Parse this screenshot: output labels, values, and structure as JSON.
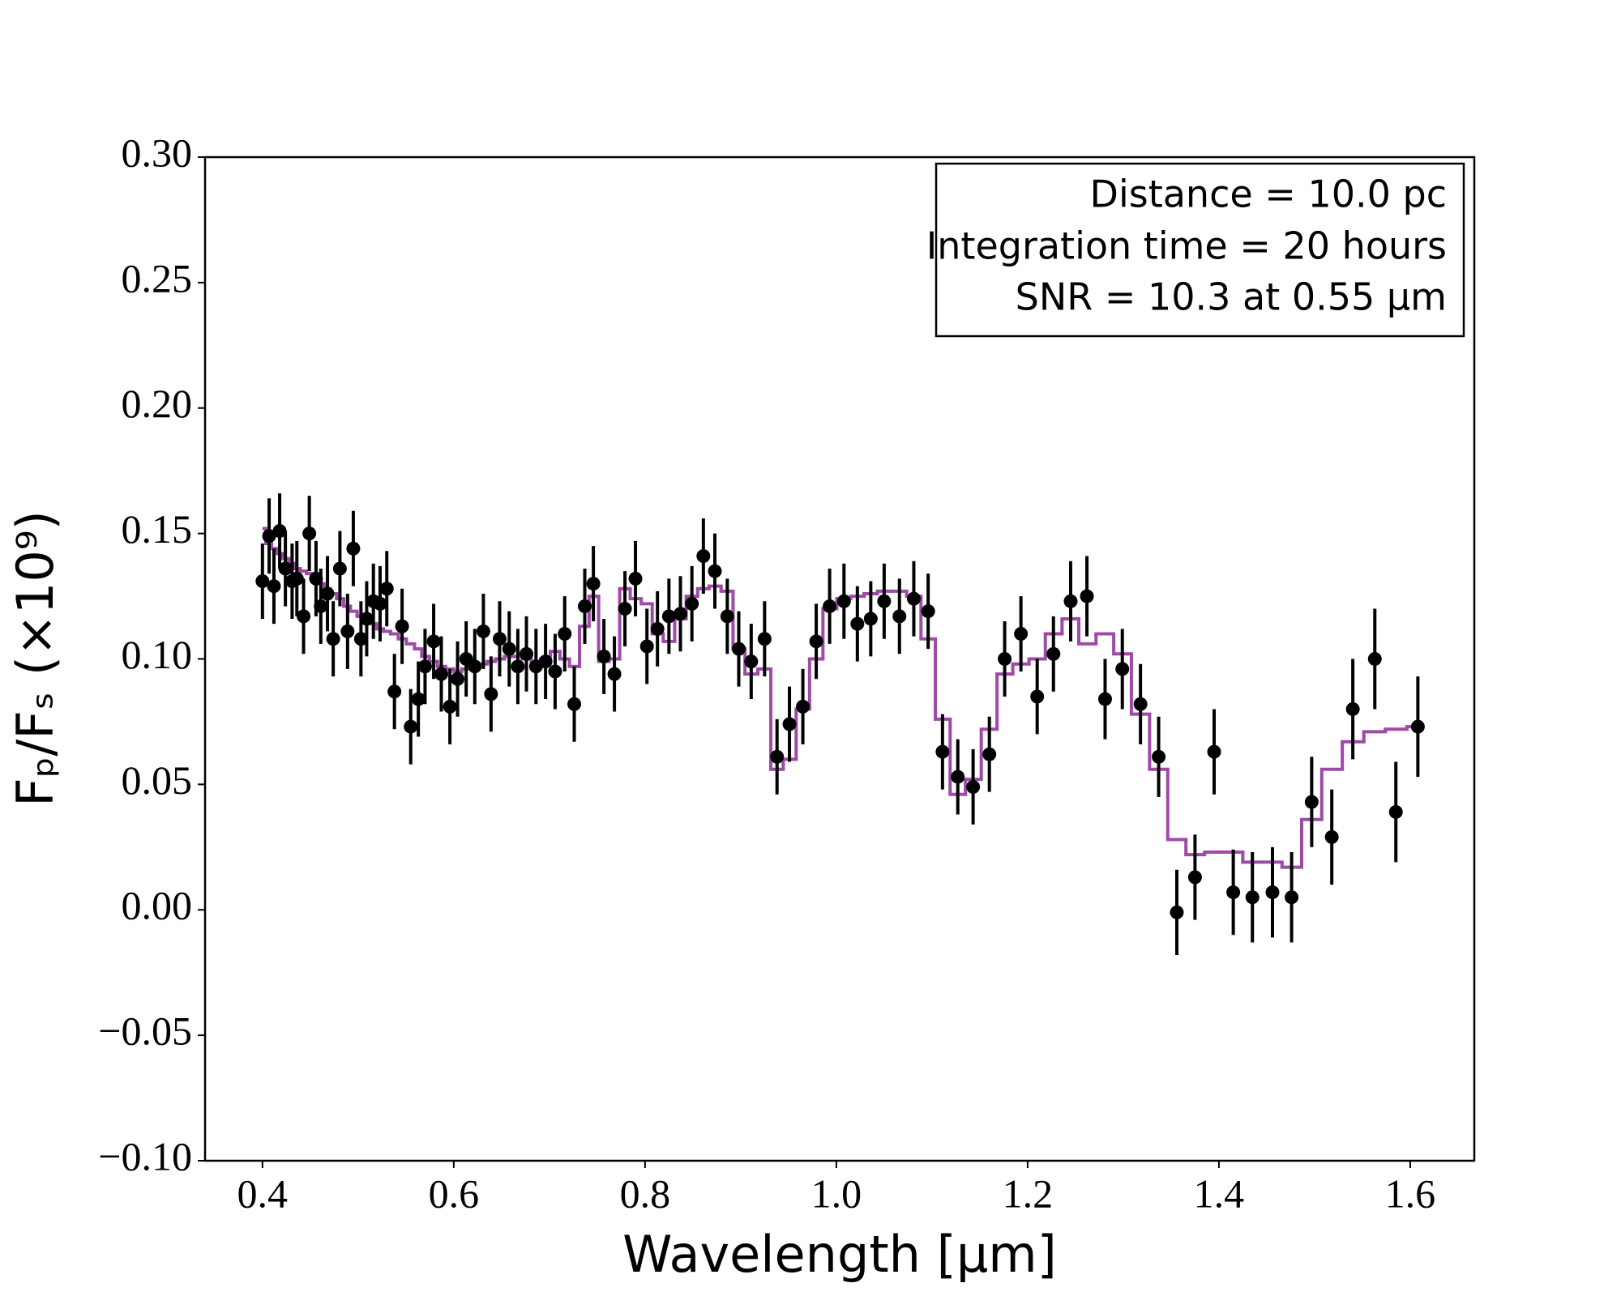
{
  "chart_data": {
    "type": "errorbar",
    "xlabel": "Wavelength [μm]",
    "ylabel": "Fₚ/Fₛ (×10⁹)",
    "annotations": [
      "Distance = 10.0 pc",
      "Integration time = 20 hours",
      "SNR = 10.3 at 0.55 μm"
    ],
    "xlim": [
      0.34,
      1.667
    ],
    "ylim": [
      -0.1,
      0.3
    ],
    "xticks": [
      0.4,
      0.6,
      0.8,
      {
        "value": 1,
        "label": "1.0"
      },
      1.2,
      1.4,
      1.6
    ],
    "yticks": [
      {
        "value": -0.1,
        "label": "−0.10"
      },
      {
        "value": -0.05,
        "label": "−0.05"
      },
      {
        "value": 0,
        "label": "0.00"
      },
      {
        "value": 0.05,
        "label": "0.05"
      },
      {
        "value": 0.1,
        "label": "0.10"
      },
      {
        "value": 0.15,
        "label": "0.15"
      },
      {
        "value": 0.2,
        "label": "0.20"
      },
      {
        "value": 0.25,
        "label": "0.25"
      },
      {
        "value": 0.3,
        "label": "0.30"
      }
    ],
    "color": "#000000",
    "model_color": "#a04aa8",
    "x": [
      0.4,
      0.407,
      0.412,
      0.418,
      0.424,
      0.431,
      0.436,
      0.443,
      0.449,
      0.456,
      0.461,
      0.468,
      0.474,
      0.481,
      0.489,
      0.495,
      0.503,
      0.509,
      0.516,
      0.523,
      0.53,
      0.538,
      0.546,
      0.555,
      0.563,
      0.57,
      0.579,
      0.587,
      0.596,
      0.604,
      0.613,
      0.622,
      0.631,
      0.639,
      0.648,
      0.658,
      0.667,
      0.676,
      0.686,
      0.696,
      0.706,
      0.716,
      0.726,
      0.737,
      0.746,
      0.757,
      0.768,
      0.779,
      0.79,
      0.802,
      0.813,
      0.825,
      0.837,
      0.849,
      0.861,
      0.873,
      0.886,
      0.898,
      0.911,
      0.925,
      0.938,
      0.951,
      0.965,
      0.979,
      0.993,
      1.008,
      1.022,
      1.036,
      1.05,
      1.066,
      1.081,
      1.096,
      1.111,
      1.127,
      1.143,
      1.16,
      1.176,
      1.193,
      1.21,
      1.227,
      1.245,
      1.262,
      1.281,
      1.299,
      1.318,
      1.337,
      1.356,
      1.375,
      1.395,
      1.415,
      1.435,
      1.456,
      1.476,
      1.497,
      1.518,
      1.54,
      1.563,
      1.585,
      1.608
    ],
    "values": [
      0.131,
      0.149,
      0.129,
      0.151,
      0.136,
      0.131,
      0.132,
      0.117,
      0.15,
      0.132,
      0.121,
      0.126,
      0.108,
      0.136,
      0.111,
      0.144,
      0.108,
      0.116,
      0.123,
      0.122,
      0.128,
      0.087,
      0.113,
      0.073,
      0.084,
      0.097,
      0.107,
      0.094,
      0.081,
      0.092,
      0.1,
      0.097,
      0.111,
      0.086,
      0.108,
      0.104,
      0.097,
      0.102,
      0.097,
      0.099,
      0.095,
      0.11,
      0.082,
      0.121,
      0.13,
      0.101,
      0.094,
      0.12,
      0.132,
      0.105,
      0.112,
      0.117,
      0.118,
      0.122,
      0.141,
      0.135,
      0.117,
      0.104,
      0.099,
      0.108,
      0.061,
      0.074,
      0.081,
      0.107,
      0.121,
      0.123,
      0.114,
      0.116,
      0.123,
      0.117,
      0.124,
      0.119,
      0.063,
      0.053,
      0.049,
      0.062,
      0.1,
      0.11,
      0.085,
      0.102,
      0.123,
      0.125,
      0.084,
      0.096,
      0.082,
      0.061,
      -0.001,
      0.013,
      0.063,
      0.007,
      0.005,
      0.007,
      0.005,
      0.043,
      0.029,
      0.08,
      0.1,
      0.039,
      0.073
    ],
    "errors": [
      0.015,
      0.015,
      0.015,
      0.015,
      0.015,
      0.015,
      0.015,
      0.015,
      0.015,
      0.015,
      0.015,
      0.015,
      0.015,
      0.015,
      0.015,
      0.015,
      0.015,
      0.015,
      0.015,
      0.015,
      0.015,
      0.015,
      0.015,
      0.015,
      0.015,
      0.015,
      0.015,
      0.015,
      0.015,
      0.015,
      0.015,
      0.015,
      0.015,
      0.015,
      0.015,
      0.015,
      0.015,
      0.015,
      0.015,
      0.015,
      0.015,
      0.015,
      0.015,
      0.015,
      0.015,
      0.015,
      0.015,
      0.015,
      0.015,
      0.015,
      0.015,
      0.015,
      0.015,
      0.015,
      0.015,
      0.015,
      0.015,
      0.015,
      0.015,
      0.015,
      0.015,
      0.015,
      0.015,
      0.015,
      0.015,
      0.015,
      0.015,
      0.015,
      0.015,
      0.015,
      0.015,
      0.015,
      0.015,
      0.015,
      0.015,
      0.015,
      0.015,
      0.015,
      0.015,
      0.015,
      0.016,
      0.016,
      0.016,
      0.016,
      0.016,
      0.016,
      0.017,
      0.017,
      0.017,
      0.017,
      0.018,
      0.018,
      0.018,
      0.018,
      0.019,
      0.02,
      0.02,
      0.02,
      0.02
    ],
    "model_values": [
      0.152,
      0.146,
      0.144,
      0.142,
      0.14,
      0.138,
      0.136,
      0.135,
      0.134,
      0.132,
      0.13,
      0.128,
      0.126,
      0.124,
      0.121,
      0.119,
      0.117,
      0.116,
      0.114,
      0.112,
      0.111,
      0.11,
      0.108,
      0.106,
      0.104,
      0.101,
      0.099,
      0.097,
      0.096,
      0.095,
      0.096,
      0.097,
      0.098,
      0.099,
      0.1,
      0.101,
      0.101,
      0.1,
      0.099,
      0.1,
      0.103,
      0.1,
      0.097,
      0.113,
      0.125,
      0.099,
      0.1,
      0.128,
      0.124,
      0.122,
      0.11,
      0.107,
      0.116,
      0.125,
      0.128,
      0.129,
      0.127,
      0.104,
      0.094,
      0.096,
      0.056,
      0.06,
      0.08,
      0.1,
      0.12,
      0.124,
      0.125,
      0.126,
      0.127,
      0.127,
      0.125,
      0.108,
      0.076,
      0.046,
      0.052,
      0.072,
      0.094,
      0.098,
      0.1,
      0.11,
      0.116,
      0.106,
      0.11,
      0.102,
      0.078,
      0.056,
      0.028,
      0.022,
      0.023,
      0.023,
      0.019,
      0.019,
      0.017,
      0.036,
      0.056,
      0.067,
      0.071,
      0.072,
      0.073
    ]
  }
}
